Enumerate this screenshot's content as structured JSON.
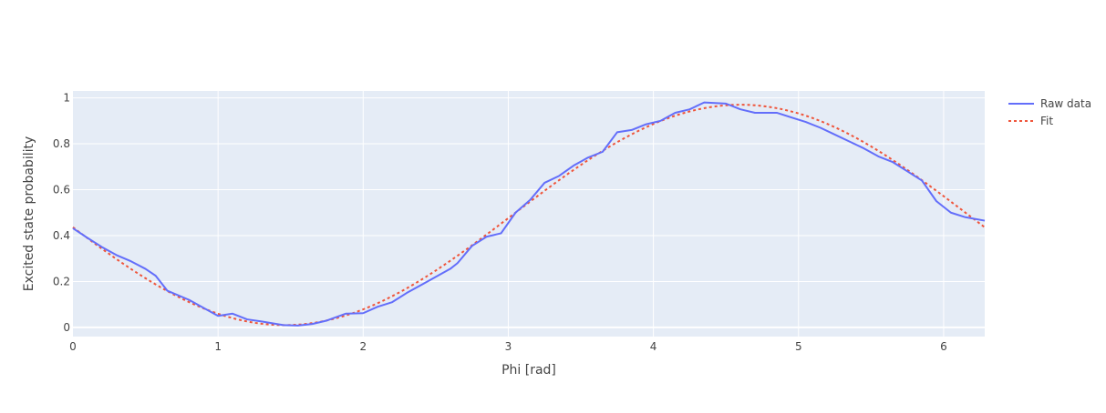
{
  "chart_data": {
    "type": "line",
    "title": "",
    "xlabel": "Phi [rad]",
    "ylabel": "Excited state probability",
    "xlim": [
      0,
      6.2832
    ],
    "ylim": [
      -0.04,
      1.03
    ],
    "x_ticks": [
      0,
      1,
      2,
      3,
      4,
      5,
      6
    ],
    "x_tick_labels": [
      "0",
      "1",
      "2",
      "3",
      "4",
      "5",
      "6"
    ],
    "y_ticks": [
      0,
      0.2,
      0.4,
      0.6,
      0.8,
      1
    ],
    "y_tick_labels": [
      "0",
      "0.2",
      "0.4",
      "0.6",
      "0.8",
      "1"
    ],
    "grid": true,
    "legend_position": "top-right outside",
    "series": [
      {
        "name": "Raw data",
        "color": "#636efa",
        "dash": "solid",
        "x": [
          0.0,
          0.1,
          0.2,
          0.3,
          0.4,
          0.5,
          0.57,
          0.65,
          0.8,
          1.0,
          1.1,
          1.2,
          1.3,
          1.45,
          1.55,
          1.65,
          1.75,
          1.88,
          2.0,
          2.1,
          2.2,
          2.3,
          2.4,
          2.5,
          2.6,
          2.65,
          2.75,
          2.85,
          2.95,
          3.05,
          3.15,
          3.25,
          3.35,
          3.45,
          3.55,
          3.65,
          3.75,
          3.85,
          3.95,
          4.05,
          4.15,
          4.25,
          4.35,
          4.5,
          4.6,
          4.7,
          4.85,
          4.95,
          5.05,
          5.15,
          5.25,
          5.35,
          5.45,
          5.55,
          5.65,
          5.75,
          5.85,
          5.95,
          6.05,
          6.15,
          6.2832
        ],
        "y": [
          0.432,
          0.39,
          0.35,
          0.315,
          0.288,
          0.255,
          0.225,
          0.16,
          0.12,
          0.05,
          0.06,
          0.035,
          0.026,
          0.01,
          0.008,
          0.015,
          0.03,
          0.06,
          0.062,
          0.09,
          0.11,
          0.15,
          0.185,
          0.22,
          0.255,
          0.28,
          0.355,
          0.395,
          0.41,
          0.5,
          0.555,
          0.63,
          0.66,
          0.705,
          0.74,
          0.765,
          0.85,
          0.86,
          0.885,
          0.9,
          0.935,
          0.95,
          0.98,
          0.975,
          0.95,
          0.935,
          0.935,
          0.915,
          0.895,
          0.87,
          0.84,
          0.81,
          0.78,
          0.745,
          0.72,
          0.68,
          0.64,
          0.55,
          0.5,
          0.48,
          0.465
        ]
      },
      {
        "name": "Fit",
        "color": "#ef553b",
        "dash": "dot",
        "fit_model": {
          "offset": 0.49,
          "amplitude": 0.48,
          "x_at_max": 4.6
        }
      }
    ]
  }
}
